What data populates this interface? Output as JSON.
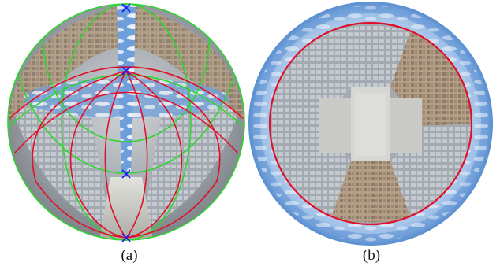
{
  "figure": {
    "panels": [
      {
        "id": "a",
        "caption": "(a)"
      },
      {
        "id": "b",
        "caption": "(b)"
      }
    ]
  },
  "colors": {
    "red_curves": "#e0102a",
    "green_curves": "#2fd62f",
    "markers": "#1a1aff",
    "sky": "#6a9ad8",
    "sky_light": "#c8dcf2",
    "facade": "#b8a48e",
    "glass": "#9aa2aa",
    "pavement": "#bdbdb8"
  }
}
